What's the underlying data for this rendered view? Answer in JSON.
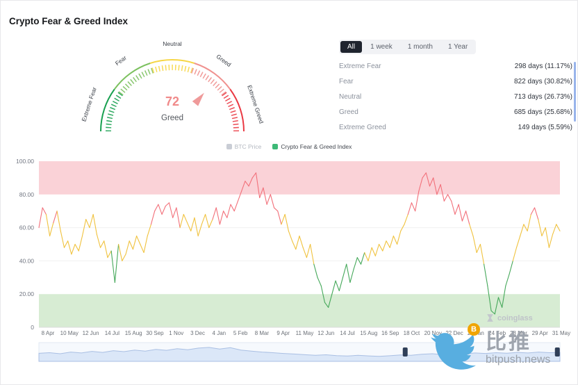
{
  "page": {
    "title": "Crypto Fear & Greed Index"
  },
  "gauge": {
    "value": "72",
    "value_label": "Greed",
    "segments": [
      {
        "label": "Extreme Fear",
        "color": "#18a050"
      },
      {
        "label": "Fear",
        "color": "#7cc15f"
      },
      {
        "label": "Neutral",
        "color": "#f6d645"
      },
      {
        "label": "Greed",
        "color": "#f0918f"
      },
      {
        "label": "Extreme Greed",
        "color": "#ea3943"
      }
    ]
  },
  "stats": {
    "tabs": [
      {
        "label": "All",
        "active": true
      },
      {
        "label": "1 week",
        "active": false
      },
      {
        "label": "1 month",
        "active": false
      },
      {
        "label": "1 Year",
        "active": false
      }
    ],
    "rows": [
      {
        "label": "Extreme Fear",
        "value": "298 days (11.17%)"
      },
      {
        "label": "Fear",
        "value": "822 days (30.82%)"
      },
      {
        "label": "Neutral",
        "value": "713 days (26.73%)"
      },
      {
        "label": "Greed",
        "value": "685 days (25.68%)"
      },
      {
        "label": "Extreme Greed",
        "value": "149 days (5.59%)"
      }
    ]
  },
  "legend": {
    "items": [
      {
        "label": "BTC Price",
        "color": "#c9cdd5",
        "muted": true
      },
      {
        "label": "Crypto Fear & Greed Index",
        "color": "#3db977",
        "muted": false
      }
    ]
  },
  "chart_data": {
    "type": "line",
    "title": "Crypto Fear & Greed Index",
    "xlabel": "",
    "ylabel": "",
    "ylim": [
      0,
      100
    ],
    "grid": true,
    "legend_position": "top",
    "y_ticks": [
      {
        "value": 100,
        "label": "100.00"
      },
      {
        "value": 80,
        "label": "80.00"
      },
      {
        "value": 60,
        "label": "60.00"
      },
      {
        "value": 40,
        "label": "40.00"
      },
      {
        "value": 20,
        "label": "20.00"
      },
      {
        "value": 0,
        "label": "0"
      }
    ],
    "x_ticks": [
      "8 Apr",
      "10 May",
      "12 Jun",
      "14 Jul",
      "15 Aug",
      "30 Sep",
      "1 Nov",
      "3 Dec",
      "4 Jan",
      "5 Feb",
      "8 Mar",
      "9 Apr",
      "11 May",
      "12 Jun",
      "14 Jul",
      "15 Aug",
      "16 Sep",
      "18 Oct",
      "20 Nov",
      "22 Dec",
      "23 Jan",
      "24 Feb",
      "28 Mar",
      "29 Apr",
      "31 May"
    ],
    "bands": [
      {
        "from": 80,
        "to": 100,
        "color": "#fad2d7",
        "name": "extreme-greed-zone"
      },
      {
        "from": 0,
        "to": 20,
        "color": "#d7ecd3",
        "name": "extreme-fear-zone"
      }
    ],
    "color_rules": [
      {
        "min": 66,
        "color": "#f2707a"
      },
      {
        "min": 42,
        "color": "#f0c23e"
      },
      {
        "min": 0,
        "color": "#45a85a"
      }
    ],
    "series": [
      {
        "name": "Crypto Fear & Greed Index",
        "values": [
          60,
          72,
          68,
          55,
          63,
          70,
          58,
          48,
          52,
          44,
          50,
          46,
          55,
          65,
          60,
          68,
          56,
          48,
          52,
          42,
          46,
          27,
          50,
          40,
          44,
          52,
          47,
          55,
          50,
          45,
          55,
          62,
          70,
          74,
          68,
          73,
          75,
          66,
          72,
          60,
          68,
          63,
          58,
          66,
          55,
          62,
          68,
          60,
          65,
          72,
          62,
          70,
          66,
          74,
          70,
          76,
          82,
          88,
          85,
          90,
          93,
          78,
          84,
          74,
          80,
          72,
          70,
          62,
          68,
          58,
          52,
          47,
          55,
          48,
          42,
          50,
          38,
          30,
          25,
          15,
          12,
          20,
          28,
          22,
          30,
          38,
          27,
          35,
          42,
          38,
          45,
          40,
          48,
          43,
          50,
          46,
          52,
          48,
          55,
          50,
          58,
          62,
          68,
          75,
          70,
          82,
          90,
          93,
          85,
          90,
          80,
          86,
          76,
          80,
          76,
          68,
          74,
          64,
          70,
          62,
          55,
          45,
          50,
          38,
          25,
          10,
          8,
          18,
          12,
          25,
          32,
          40,
          48,
          55,
          62,
          58,
          68,
          72,
          65,
          55,
          60,
          48,
          56,
          62,
          58
        ]
      }
    ]
  },
  "navigator": {
    "values": [
      0.45,
      0.5,
      0.42,
      0.55,
      0.48,
      0.6,
      0.52,
      0.65,
      0.58,
      0.7,
      0.62,
      0.75,
      0.68,
      0.8,
      0.72,
      0.85,
      0.9,
      0.78,
      0.88,
      0.7,
      0.62,
      0.55,
      0.5,
      0.44,
      0.4,
      0.35,
      0.3,
      0.34,
      0.28,
      0.25,
      0.3,
      0.26,
      0.22,
      0.27,
      0.33,
      0.3,
      0.38,
      0.42,
      0.36,
      0.45,
      0.4,
      0.48,
      0.44,
      0.5,
      0.46,
      0.52,
      0.48,
      0.55,
      0.5,
      0.52
    ],
    "fill": "#dbe7f8",
    "stroke": "#a9bfe3",
    "handle_color": "#2f3f58",
    "handles": [
      0.703,
      0.995
    ]
  },
  "watermarks": {
    "coinglass": "coinglass",
    "bitpush_name": "比推",
    "bitpush_domain": "bitpush.news",
    "bitcoin_symbol": "B"
  }
}
